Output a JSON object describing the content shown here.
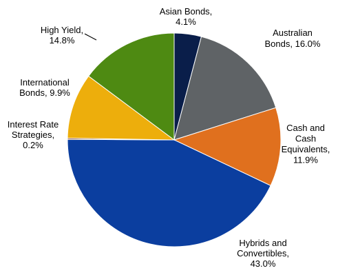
{
  "chart_data": {
    "type": "pie",
    "title": "",
    "start_angle_deg": 0,
    "direction": "clockwise",
    "slices": [
      {
        "name": "Asian Bonds",
        "value": 4.1,
        "value_label": "4.1%",
        "color": "#0A1E4A"
      },
      {
        "name": "Australian Bonds",
        "value": 16.0,
        "value_label": "16.0%",
        "color": "#5F6366"
      },
      {
        "name": "Cash and Cash Equivalents",
        "value": 11.9,
        "value_label": "11.9%",
        "color": "#E0701E"
      },
      {
        "name": "Hybrids and Convertibles",
        "value": 43.0,
        "value_label": "43.0%",
        "color": "#0B3E9F"
      },
      {
        "name": "Interest Rate Strategies",
        "value": 0.2,
        "value_label": "0.2%",
        "color": "#7A3A12"
      },
      {
        "name": "International Bonds",
        "value": 9.9,
        "value_label": "9.9%",
        "color": "#EDAE0C"
      },
      {
        "name": "High Yield",
        "value": 14.8,
        "value_label": "14.8%",
        "color": "#4E8A12"
      }
    ],
    "labels": [
      {
        "lines": [
          "Asian Bonds,",
          "4.1%"
        ]
      },
      {
        "lines": [
          "Australian",
          "Bonds, 16.0%"
        ]
      },
      {
        "lines": [
          "Cash and",
          "Cash",
          "Equivalents,",
          "11.9%"
        ]
      },
      {
        "lines": [
          "Hybrids and",
          "Convertibles,",
          "43.0%"
        ]
      },
      {
        "lines": [
          "Interest Rate",
          "Strategies,",
          "0.2%"
        ]
      },
      {
        "lines": [
          "International",
          "Bonds, 9.9%"
        ]
      },
      {
        "lines": [
          "High Yield,",
          "14.8%"
        ]
      }
    ]
  }
}
